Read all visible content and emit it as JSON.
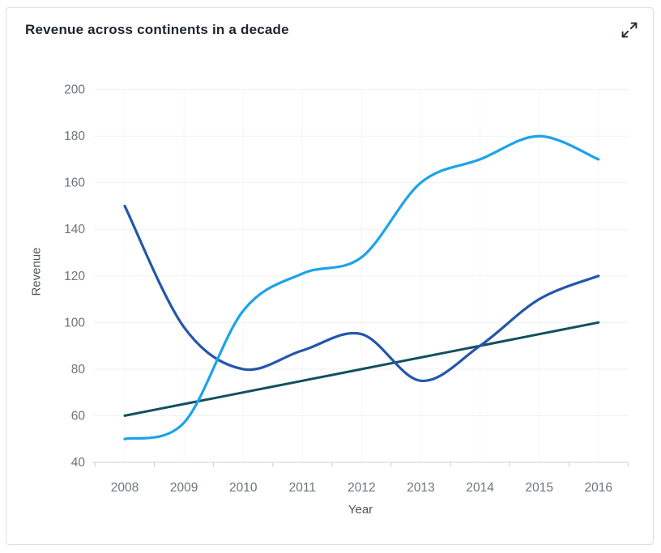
{
  "card": {
    "title": "Revenue across continents in a decade"
  },
  "icons": {
    "expand": "expand-diagonal-arrows"
  },
  "palette": {
    "card_border": "#dcdfe3",
    "title_text": "#1f2430",
    "tick_label": "#6e747d",
    "axis_title": "#4e545c",
    "axis_line": "#ccd0d6",
    "grid_line_h": "#f0f1f3",
    "grid_line_v": "#f4f5f7",
    "icon": "#262b35"
  },
  "chart_data": {
    "type": "line",
    "title": "Revenue across continents in a decade",
    "xlabel": "Year",
    "ylabel": "Revenue",
    "categories": [
      "2008",
      "2009",
      "2010",
      "2011",
      "2012",
      "2013",
      "2014",
      "2015",
      "2016"
    ],
    "ylim": [
      40,
      200
    ],
    "ytick_step": 20,
    "ytick_labels": [
      "40",
      "60",
      "80",
      "100",
      "120",
      "140",
      "160",
      "180",
      "200"
    ],
    "grid": true,
    "legend_position": "none",
    "line_style": "smooth",
    "series": [
      {
        "name": "sky-blue-line",
        "color": "#1ca3ea",
        "width": 3.2,
        "values": [
          50,
          57,
          105,
          121,
          128,
          160,
          170,
          180,
          170
        ]
      },
      {
        "name": "royal-blue-line",
        "color": "#2456ac",
        "width": 3.2,
        "values": [
          150,
          98,
          80,
          88,
          95,
          75,
          90,
          110,
          120
        ]
      },
      {
        "name": "teal-line",
        "color": "#12505e",
        "width": 3.0,
        "values": [
          60,
          65,
          70,
          75,
          80,
          85,
          90,
          95,
          100
        ]
      }
    ]
  }
}
